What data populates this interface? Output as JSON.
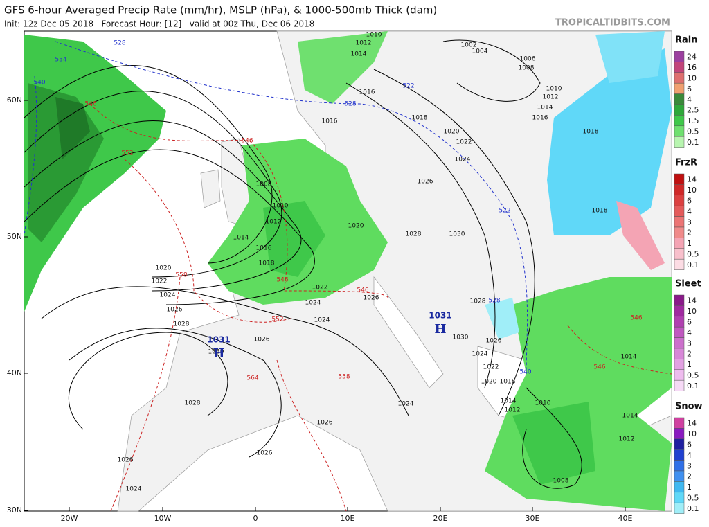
{
  "header": {
    "title": "GFS 6-hour Averaged Precip Rate (mm/hr), MSLP (hPa), & 1000-500mb Thick (dam)",
    "subtitle": "Init: 12z Dec 05 2018   Forecast Hour: [12]   valid at 00z Thu, Dec 06 2018",
    "site": "TROPICALTIDBITS.COM"
  },
  "map": {
    "lat_labels": [
      "60N",
      "50N",
      "40N",
      "30N"
    ],
    "lon_labels": [
      "20W",
      "10W",
      "0",
      "10E",
      "20E",
      "30E",
      "40E"
    ],
    "isobar_labels": [
      "1010",
      "1012",
      "1014",
      "1002",
      "1004",
      "1006",
      "1008",
      "1010",
      "1012",
      "1014",
      "1016",
      "1016",
      "1016",
      "1018",
      "1020",
      "1022",
      "1024",
      "1026",
      "1028",
      "1030",
      "1018",
      "1018",
      "1008",
      "1010",
      "1012",
      "1014",
      "1016",
      "1018",
      "1020",
      "1020",
      "1022",
      "1024",
      "1026",
      "1028",
      "1022",
      "1024",
      "1026",
      "1024",
      "1026",
      "1030",
      "1028",
      "1026",
      "1030",
      "1024",
      "1022",
      "1020",
      "1018",
      "1014",
      "1012",
      "1010",
      "1014",
      "1012",
      "1014",
      "1024",
      "1028",
      "1026",
      "1026",
      "1026",
      "1024",
      "1008"
    ],
    "thickness_labels": [
      {
        "label": "528",
        "color": "#2233cc"
      },
      {
        "label": "534",
        "color": "#2233cc"
      },
      {
        "label": "540",
        "color": "#2233cc"
      },
      {
        "label": "528",
        "color": "#2233cc"
      },
      {
        "label": "522",
        "color": "#2233cc"
      },
      {
        "label": "522",
        "color": "#2233cc"
      },
      {
        "label": "528",
        "color": "#2233cc"
      },
      {
        "label": "540",
        "color": "#2233cc"
      },
      {
        "label": "546",
        "color": "#cc2222"
      },
      {
        "label": "552",
        "color": "#cc2222"
      },
      {
        "label": "546",
        "color": "#cc2222"
      },
      {
        "label": "558",
        "color": "#cc2222"
      },
      {
        "label": "546",
        "color": "#cc2222"
      },
      {
        "label": "546",
        "color": "#cc2222"
      },
      {
        "label": "552",
        "color": "#cc2222"
      },
      {
        "label": "558",
        "color": "#cc2222"
      },
      {
        "label": "564",
        "color": "#cc2222"
      },
      {
        "label": "546",
        "color": "#cc2222"
      },
      {
        "label": "546",
        "color": "#cc2222"
      }
    ],
    "pressure_centers": [
      {
        "letter": "H",
        "value": "1031"
      },
      {
        "letter": "H",
        "value": "1031"
      }
    ]
  },
  "legends": [
    {
      "title": "Rain",
      "levels": [
        24,
        16,
        10,
        6,
        4,
        2.5,
        1.5,
        0.5,
        0.1
      ],
      "colors": [
        "#9b3f9f",
        "#c2457a",
        "#de6f6f",
        "#f0a070",
        "#3a8a3a",
        "#2fa83a",
        "#3fc84a",
        "#6fe06f",
        "#b8f5b0"
      ]
    },
    {
      "title": "FrzR",
      "levels": [
        14,
        10,
        6,
        4,
        3,
        2,
        1,
        0.5,
        0.1
      ],
      "colors": [
        "#c01010",
        "#d02828",
        "#dc4040",
        "#e45a5a",
        "#ec7474",
        "#f08a8a",
        "#f4a4b4",
        "#f8c0cc",
        "#fcdce4"
      ]
    },
    {
      "title": "Sleet",
      "levels": [
        14,
        10,
        6,
        4,
        3,
        2,
        1,
        0.5,
        0.1
      ],
      "colors": [
        "#8a1a8a",
        "#a02aa0",
        "#b040b0",
        "#c058c0",
        "#cc70cc",
        "#d888d8",
        "#e2a2e2",
        "#eebcee",
        "#f6daf6"
      ]
    },
    {
      "title": "Snow",
      "levels": [
        14,
        10,
        6,
        4,
        3,
        2,
        1,
        0.5,
        0.1
      ],
      "colors": [
        "#d040a0",
        "#8a1ac0",
        "#2020a0",
        "#2040d0",
        "#3070e8",
        "#4090f0",
        "#40b8f0",
        "#60d8f8",
        "#a0eef8"
      ]
    }
  ]
}
